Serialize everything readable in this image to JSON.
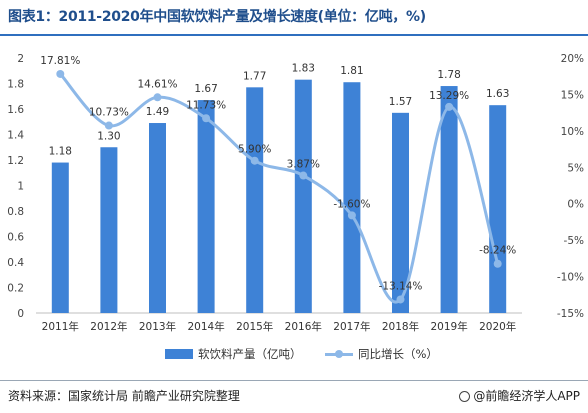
{
  "title": "图表1：2011-2020年中国软饮料产量及增长速度(单位：亿吨，%)",
  "source": "资料来源：国家统计局 前瞻产业研究院整理",
  "brand": "@前瞻经济学人APP",
  "colors": {
    "bar": "#3e82d6",
    "line": "#8db8e8",
    "title": "#1f4e8c"
  },
  "chart_data": {
    "type": "bar",
    "categories": [
      "2011年",
      "2012年",
      "2013年",
      "2014年",
      "2015年",
      "2016年",
      "2017年",
      "2018年",
      "2019年",
      "2020年"
    ],
    "series": [
      {
        "name": "软饮料产量（亿吨）",
        "type": "bar",
        "axis": "left",
        "values": [
          1.18,
          1.3,
          1.49,
          1.67,
          1.77,
          1.83,
          1.81,
          1.57,
          1.78,
          1.63
        ],
        "labels": [
          "1.18",
          "1.30",
          "1.49",
          "1.67",
          "1.77",
          "1.83",
          "1.81",
          "1.57",
          "1.78",
          "1.63"
        ]
      },
      {
        "name": "同比增长（%）",
        "type": "line",
        "axis": "right",
        "smooth": true,
        "values": [
          17.81,
          10.73,
          14.61,
          11.73,
          5.9,
          3.87,
          -1.6,
          -13.14,
          13.29,
          -8.24
        ],
        "labels": [
          "17.81%",
          "10.73%",
          "14.61%",
          "11.73%",
          "5.90%",
          "3.87%",
          "-1.60%",
          "-13.14%",
          "13.29%",
          "-8.24%"
        ]
      }
    ],
    "y_left": {
      "min": 0,
      "max": 2,
      "ticks": [
        "0",
        "0.2",
        "0.4",
        "0.6",
        "0.8",
        "1",
        "1.2",
        "1.4",
        "1.6",
        "1.8",
        "2"
      ]
    },
    "y_right": {
      "min": -15,
      "max": 20,
      "ticks": [
        "-15%",
        "-10%",
        "-5%",
        "0%",
        "5%",
        "10%",
        "15%",
        "20%"
      ]
    },
    "legend": {
      "position": "bottom",
      "items": [
        "软饮料产量（亿吨）",
        "同比增长（%）"
      ]
    },
    "grid": false
  }
}
